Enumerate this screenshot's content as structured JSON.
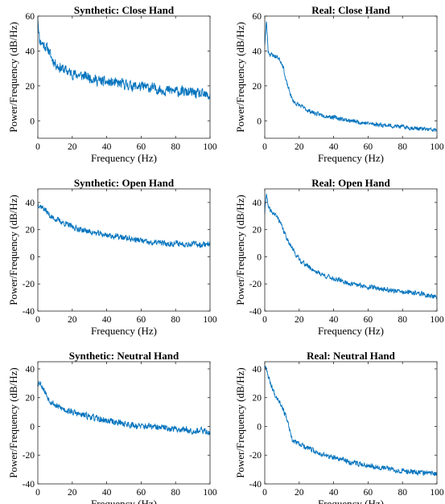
{
  "figure": {
    "line_color": "#0072BD",
    "background": "#ffffff"
  },
  "chart_data": [
    {
      "type": "line",
      "title": "Synthetic: Close Hand",
      "xlabel": "Frequency (Hz)",
      "ylabel": "Power/Frequency (dB/Hz)",
      "xlim": [
        0,
        100
      ],
      "ylim": [
        -10,
        60
      ],
      "xticks": [
        0,
        20,
        40,
        60,
        80,
        100
      ],
      "yticks": [
        0,
        20,
        40,
        60
      ],
      "grid": false,
      "series": [
        {
          "x": [
            0,
            1,
            2,
            4,
            6,
            8,
            10,
            12,
            14,
            16,
            20,
            25,
            30,
            35,
            40,
            45,
            50,
            55,
            60,
            65,
            70,
            75,
            80,
            85,
            90,
            95,
            100
          ],
          "y": [
            60,
            46,
            45,
            43,
            41,
            36,
            33,
            31,
            30,
            29,
            27,
            26,
            25,
            23,
            22,
            21.5,
            21,
            20,
            19.5,
            19,
            18,
            17.5,
            17,
            16.5,
            16,
            15,
            14
          ],
          "noise": 2.6,
          "seed": 11
        }
      ]
    },
    {
      "type": "line",
      "title": "Real: Close Hand",
      "xlabel": "Frequency (Hz)",
      "ylabel": "Power/Frequency (dB/Hz)",
      "xlim": [
        0,
        100
      ],
      "ylim": [
        -10,
        60
      ],
      "xticks": [
        0,
        20,
        40,
        60,
        80,
        100
      ],
      "yticks": [
        0,
        20,
        40,
        60
      ],
      "grid": false,
      "series": [
        {
          "x": [
            0,
            1,
            2,
            3,
            4,
            6,
            8,
            10,
            11,
            12,
            14,
            16,
            18,
            20,
            25,
            30,
            40,
            50,
            60,
            70,
            80,
            90,
            100
          ],
          "y": [
            44,
            57,
            40,
            38,
            38,
            37,
            36,
            33,
            30,
            24,
            18,
            12,
            10,
            9,
            6,
            4,
            2,
            0,
            -1.5,
            -2.5,
            -3.5,
            -4.5,
            -5.5
          ],
          "noise": 1.1,
          "seed": 23
        }
      ]
    },
    {
      "type": "line",
      "title": "Synthetic: Open Hand",
      "xlabel": "Frequency (Hz)",
      "ylabel": "Power/Frequency (dB/Hz)",
      "xlim": [
        0,
        100
      ],
      "ylim": [
        -40,
        50
      ],
      "xticks": [
        0,
        20,
        40,
        60,
        80,
        100
      ],
      "yticks": [
        -40,
        -20,
        0,
        20,
        40
      ],
      "grid": false,
      "series": [
        {
          "x": [
            0,
            2,
            4,
            6,
            8,
            10,
            15,
            20,
            25,
            30,
            35,
            40,
            45,
            50,
            55,
            60,
            65,
            70,
            75,
            80,
            85,
            90,
            95,
            100
          ],
          "y": [
            39,
            37,
            35,
            32,
            29,
            28,
            25,
            22,
            20,
            18.5,
            17,
            16,
            15,
            14,
            13,
            12,
            10,
            10.5,
            9.5,
            10,
            9.5,
            9.5,
            9,
            10
          ],
          "noise": 1.9,
          "seed": 37
        }
      ]
    },
    {
      "type": "line",
      "title": "Real: Open Hand",
      "xlabel": "Frequency (Hz)",
      "ylabel": "Power/Frequency (dB/Hz)",
      "xlim": [
        0,
        100
      ],
      "ylim": [
        -40,
        50
      ],
      "xticks": [
        0,
        20,
        40,
        60,
        80,
        100
      ],
      "yticks": [
        -40,
        -20,
        0,
        20,
        40
      ],
      "grid": false,
      "series": [
        {
          "x": [
            0,
            1,
            2,
            4,
            6,
            8,
            10,
            12,
            14,
            16,
            18,
            20,
            25,
            30,
            35,
            40,
            45,
            50,
            55,
            60,
            70,
            80,
            90,
            100
          ],
          "y": [
            32,
            48,
            36,
            33,
            31,
            28,
            22,
            16,
            11,
            6,
            2,
            -2,
            -7,
            -11,
            -14,
            -16,
            -18,
            -20,
            -21,
            -22,
            -24,
            -26,
            -27,
            -30
          ],
          "noise": 1.6,
          "seed": 41
        }
      ]
    },
    {
      "type": "line",
      "title": "Synthetic: Neutral Hand",
      "xlabel": "Frequency (Hz)",
      "ylabel": "Power/Frequency (dB/Hz)",
      "xlim": [
        0,
        100
      ],
      "ylim": [
        -40,
        45
      ],
      "xticks": [
        0,
        20,
        40,
        60,
        80,
        100
      ],
      "yticks": [
        -40,
        -20,
        0,
        20,
        40
      ],
      "grid": false,
      "series": [
        {
          "x": [
            0,
            1,
            3,
            5,
            7,
            9,
            11,
            13,
            15,
            20,
            25,
            30,
            35,
            40,
            45,
            50,
            55,
            60,
            65,
            70,
            75,
            80,
            85,
            90,
            95,
            100
          ],
          "y": [
            30,
            31,
            27,
            22,
            18,
            16,
            14,
            13,
            12,
            10,
            8,
            7,
            5,
            4,
            3,
            2,
            1,
            0,
            0,
            -1,
            -1,
            -2,
            -2,
            -3,
            -3,
            -4
          ],
          "noise": 2.0,
          "seed": 53
        }
      ]
    },
    {
      "type": "line",
      "title": "Real: Neutral Hand",
      "xlabel": "Frequency (Hz)",
      "ylabel": "Power/Frequency (dB/Hz)",
      "xlim": [
        0,
        100
      ],
      "ylim": [
        -40,
        45
      ],
      "xticks": [
        0,
        20,
        40,
        60,
        80,
        100
      ],
      "yticks": [
        -40,
        -20,
        0,
        20,
        40
      ],
      "grid": false,
      "series": [
        {
          "x": [
            0,
            1,
            2,
            4,
            6,
            8,
            10,
            12,
            14,
            15,
            16,
            18,
            20,
            25,
            30,
            35,
            40,
            45,
            50,
            60,
            70,
            80,
            90,
            100
          ],
          "y": [
            42,
            41,
            35,
            28,
            22,
            19,
            14,
            8,
            0,
            -6,
            -10,
            -11,
            -12,
            -15,
            -18,
            -20,
            -22,
            -23,
            -25,
            -27,
            -29,
            -31,
            -32,
            -33
          ],
          "noise": 1.6,
          "seed": 67
        }
      ]
    }
  ]
}
